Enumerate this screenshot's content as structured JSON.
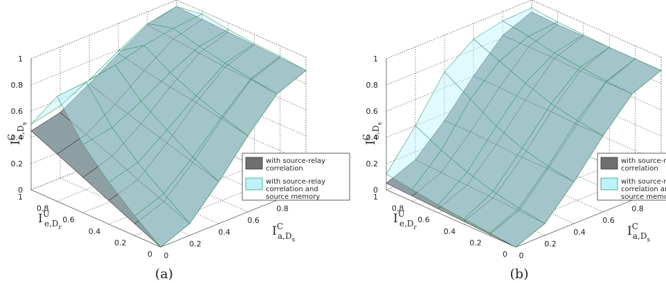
{
  "chart_data": [
    {
      "type": "surface",
      "panel": "(a)",
      "x": [
        0,
        0.2,
        0.4,
        0.6,
        0.8,
        1
      ],
      "y": [
        0,
        0.2,
        0.4,
        0.6,
        0.8,
        1
      ],
      "xlim": [
        0,
        1
      ],
      "ylim": [
        0,
        1
      ],
      "zlim": [
        0,
        1
      ],
      "xticks": [
        0,
        0.2,
        0.4,
        0.6,
        0.8,
        1
      ],
      "yticks": [
        0,
        0.2,
        0.4,
        0.6,
        0.8,
        1
      ],
      "zticks": [
        0,
        0.2,
        0.4,
        0.6,
        0.8,
        1
      ],
      "xlabel": {
        "base": "I",
        "sup": "C",
        "sub": "a,D",
        "subsub": "s"
      },
      "ylabel": {
        "base": "I",
        "sup": "U",
        "sub": "e,D",
        "subsub": "r"
      },
      "zlabel": {
        "base": "I",
        "sup": "C",
        "sub": "e,D",
        "subsub": "s"
      },
      "grid": true,
      "legend": "right",
      "series": [
        {
          "name": [
            "with source-relay",
            "correlation"
          ],
          "color": "#8e9fa3",
          "values": [
            [
              0,
              0.09,
              0.32,
              0.58,
              0.81,
              0.9
            ],
            [
              0.09,
              0.17,
              0.38,
              0.62,
              0.83,
              0.91
            ],
            [
              0.18,
              0.25,
              0.44,
              0.66,
              0.84,
              0.92
            ],
            [
              0.27,
              0.34,
              0.5,
              0.69,
              0.86,
              0.93
            ],
            [
              0.36,
              0.42,
              0.56,
              0.73,
              0.88,
              0.94
            ],
            [
              0.45,
              0.5,
              0.63,
              0.77,
              0.9,
              0.95
            ]
          ]
        },
        {
          "name": [
            "with source-relay",
            "correlation and",
            "source memory"
          ],
          "color": "#bdf3fb",
          "values": [
            [
              0,
              0.09,
              0.32,
              0.58,
              0.81,
              0.9
            ],
            [
              0.15,
              0.23,
              0.42,
              0.64,
              0.84,
              0.92
            ],
            [
              0.32,
              0.38,
              0.54,
              0.71,
              0.87,
              0.93
            ],
            [
              0.52,
              0.56,
              0.67,
              0.8,
              0.91,
              0.95
            ],
            [
              0.8,
              0.82,
              0.86,
              0.92,
              0.96,
              0.98
            ],
            [
              0.5,
              0.55,
              0.66,
              0.79,
              0.91,
              0.95
            ]
          ]
        }
      ]
    },
    {
      "type": "surface",
      "panel": "(b)",
      "x": [
        0,
        0.2,
        0.4,
        0.6,
        0.8,
        1
      ],
      "y": [
        0,
        0.2,
        0.4,
        0.6,
        0.8,
        1
      ],
      "xlim": [
        0,
        1
      ],
      "ylim": [
        0,
        1
      ],
      "zlim": [
        0,
        1
      ],
      "xticks": [
        0,
        0.2,
        0.4,
        0.6,
        0.8,
        1
      ],
      "yticks": [
        0,
        0.2,
        0.4,
        0.6,
        0.8,
        1
      ],
      "zticks": [
        0,
        0.2,
        0.4,
        0.6,
        0.8,
        1
      ],
      "xlabel": {
        "base": "I",
        "sup": "C",
        "sub": "a,D",
        "subsub": "s"
      },
      "ylabel": {
        "base": "I",
        "sup": "U",
        "sub": "e,D",
        "subsub": "r"
      },
      "zlabel": {
        "base": "I",
        "sup": "C",
        "sub": "e,D",
        "subsub": "s"
      },
      "grid": true,
      "legend": "right",
      "series": [
        {
          "name": [
            "with source-relay",
            "correlation"
          ],
          "color": "#8e9fa3",
          "values": [
            [
              0,
              0.09,
              0.32,
              0.58,
              0.81,
              0.9
            ],
            [
              0.01,
              0.1,
              0.33,
              0.58,
              0.81,
              0.9
            ],
            [
              0.02,
              0.11,
              0.33,
              0.59,
              0.81,
              0.9
            ],
            [
              0.03,
              0.12,
              0.34,
              0.59,
              0.82,
              0.9
            ],
            [
              0.04,
              0.13,
              0.35,
              0.6,
              0.82,
              0.9
            ],
            [
              0.05,
              0.14,
              0.35,
              0.6,
              0.82,
              0.91
            ]
          ]
        },
        {
          "name": [
            "with source-relay",
            "correlation and",
            "source memory"
          ],
          "color": "#bdf3fb",
          "values": [
            [
              0,
              0.09,
              0.32,
              0.58,
              0.81,
              0.9
            ],
            [
              0.02,
              0.12,
              0.35,
              0.61,
              0.82,
              0.9
            ],
            [
              0.04,
              0.16,
              0.4,
              0.65,
              0.84,
              0.9
            ],
            [
              0.06,
              0.22,
              0.48,
              0.72,
              0.86,
              0.91
            ],
            [
              0.09,
              0.3,
              0.6,
              0.8,
              0.9,
              0.92
            ],
            [
              0.12,
              0.4,
              0.72,
              0.88,
              0.93,
              0.94
            ]
          ]
        }
      ]
    }
  ]
}
